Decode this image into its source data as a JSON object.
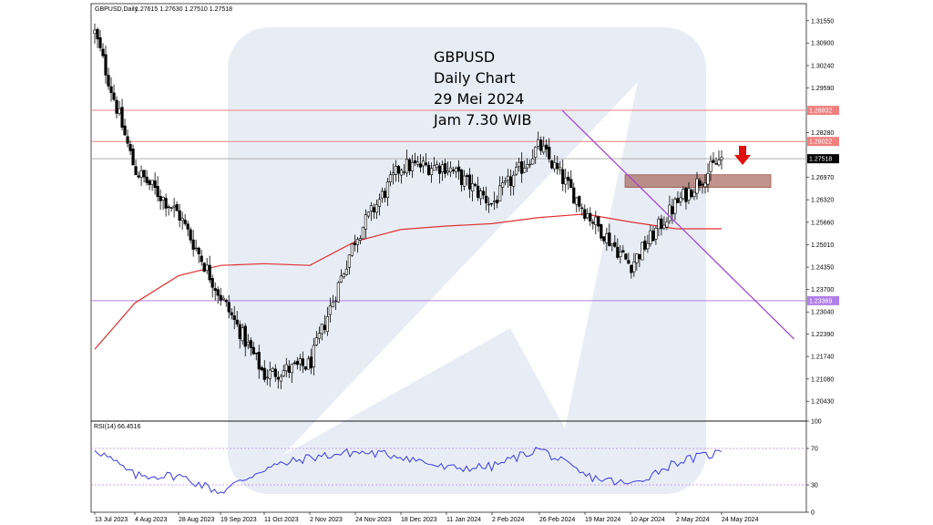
{
  "header": {
    "symbol": "GBPUSD,Daily",
    "ohlc": "1.27615 1.27630 1.27510 1.27518"
  },
  "annotation": {
    "line1": "GBPUSD",
    "line2": "Daily Chart",
    "line3": "29 Mei 2024",
    "line4": "Jam 7.30 WIB"
  },
  "rsi_panel": {
    "title": "RSI(14) 66.4516",
    "ticks": [
      "100",
      "70",
      "30",
      "0"
    ]
  },
  "colors": {
    "candle": "#000000",
    "moving_average": "#e03030",
    "resistance_line": "#f08080",
    "support_line": "#b27fe8",
    "trendline": "#a040d0",
    "zone": "#a05a50",
    "rsi_line": "#3a3ae0",
    "arrow": "#e01010",
    "watermark": "#e8edf5"
  },
  "chart_data": {
    "type": "candlestick",
    "title": "GBPUSD,Daily",
    "price_axis": {
      "range": [
        1.1985,
        1.3205
      ],
      "tick_labels": [
        "1.31550",
        "1.30900",
        "1.30240",
        "1.29590",
        "1.28932",
        "1.28280",
        "1.28022",
        "1.27518",
        "1.26970",
        "1.26320",
        "1.25660",
        "1.25010",
        "1.24350",
        "1.23700",
        "1.23369",
        "1.23040",
        "1.22390",
        "1.21740",
        "1.21080",
        "1.20430"
      ]
    },
    "x_axis": {
      "tick_labels": [
        "13 Jul 2023",
        "4 Aug 2023",
        "28 Aug 2023",
        "19 Sep 2023",
        "11 Oct 2023",
        "2 Nov 2023",
        "24 Nov 2023",
        "18 Dec 2023",
        "11 Jan 2024",
        "2 Feb 2024",
        "26 Feb 2024",
        "19 Mar 2024",
        "10 Apr 2024",
        "2 May 2024",
        "24 May 2024"
      ]
    },
    "horizontal_levels": [
      {
        "value": 1.28932,
        "label": "1.28932",
        "role": "resistance"
      },
      {
        "value": 1.28022,
        "label": "1.28022",
        "role": "resistance"
      },
      {
        "value": 1.27518,
        "label": "1.27518",
        "role": "current_price"
      },
      {
        "value": 1.23369,
        "label": "1.23369",
        "role": "support"
      }
    ],
    "zone": {
      "from": 1.2668,
      "to": 1.2705
    },
    "trendline": {
      "start": {
        "date": "8 Mar 2024",
        "price": 1.2893
      },
      "end": {
        "date": "28 Jun 2024",
        "price": 1.2225
      }
    },
    "moving_average_points": [
      {
        "date": "13 Jul 2023",
        "value": 1.2195
      },
      {
        "date": "4 Aug 2023",
        "value": 1.233
      },
      {
        "date": "28 Aug 2023",
        "value": 1.241
      },
      {
        "date": "19 Sep 2023",
        "value": 1.244
      },
      {
        "date": "11 Oct 2023",
        "value": 1.2445
      },
      {
        "date": "2 Nov 2023",
        "value": 1.244
      },
      {
        "date": "24 Nov 2023",
        "value": 1.251
      },
      {
        "date": "18 Dec 2023",
        "value": 1.2545
      },
      {
        "date": "11 Jan 2024",
        "value": 1.2555
      },
      {
        "date": "2 Feb 2024",
        "value": 1.2562
      },
      {
        "date": "26 Feb 2024",
        "value": 1.258
      },
      {
        "date": "19 Mar 2024",
        "value": 1.259
      },
      {
        "date": "10 Apr 2024",
        "value": 1.2567
      },
      {
        "date": "2 May 2024",
        "value": 1.2547
      },
      {
        "date": "24 May 2024",
        "value": 1.2547
      }
    ],
    "close_path": [
      {
        "date": "13 Jul 2023",
        "value": 1.312
      },
      {
        "date": "4 Aug 2023",
        "value": 1.272
      },
      {
        "date": "28 Aug 2023",
        "value": 1.259
      },
      {
        "date": "19 Sep 2023",
        "value": 1.235
      },
      {
        "date": "11 Oct 2023",
        "value": 1.212
      },
      {
        "date": "2 Nov 2023",
        "value": 1.215
      },
      {
        "date": "24 Nov 2023",
        "value": 1.252
      },
      {
        "date": "18 Dec 2023",
        "value": 1.273
      },
      {
        "date": "11 Jan 2024",
        "value": 1.273
      },
      {
        "date": "2 Feb 2024",
        "value": 1.262
      },
      {
        "date": "26 Feb 2024",
        "value": 1.279
      },
      {
        "date": "19 Mar 2024",
        "value": 1.26
      },
      {
        "date": "10 Apr 2024",
        "value": 1.244
      },
      {
        "date": "2 May 2024",
        "value": 1.262
      },
      {
        "date": "24 May 2024",
        "value": 1.2752
      }
    ],
    "rsi": {
      "range": [
        0,
        100
      ],
      "levels": [
        70,
        30
      ],
      "current": 66.4516,
      "path": [
        {
          "date": "13 Jul 2023",
          "value": 70
        },
        {
          "date": "4 Aug 2023",
          "value": 40
        },
        {
          "date": "28 Aug 2023",
          "value": 40
        },
        {
          "date": "19 Sep 2023",
          "value": 22
        },
        {
          "date": "11 Oct 2023",
          "value": 48
        },
        {
          "date": "2 Nov 2023",
          "value": 60
        },
        {
          "date": "24 Nov 2023",
          "value": 66
        },
        {
          "date": "18 Dec 2023",
          "value": 62
        },
        {
          "date": "11 Jan 2024",
          "value": 48
        },
        {
          "date": "2 Feb 2024",
          "value": 50
        },
        {
          "date": "26 Feb 2024",
          "value": 70
        },
        {
          "date": "19 Mar 2024",
          "value": 40
        },
        {
          "date": "10 Apr 2024",
          "value": 30
        },
        {
          "date": "2 May 2024",
          "value": 55
        },
        {
          "date": "24 May 2024",
          "value": 66
        }
      ]
    }
  }
}
